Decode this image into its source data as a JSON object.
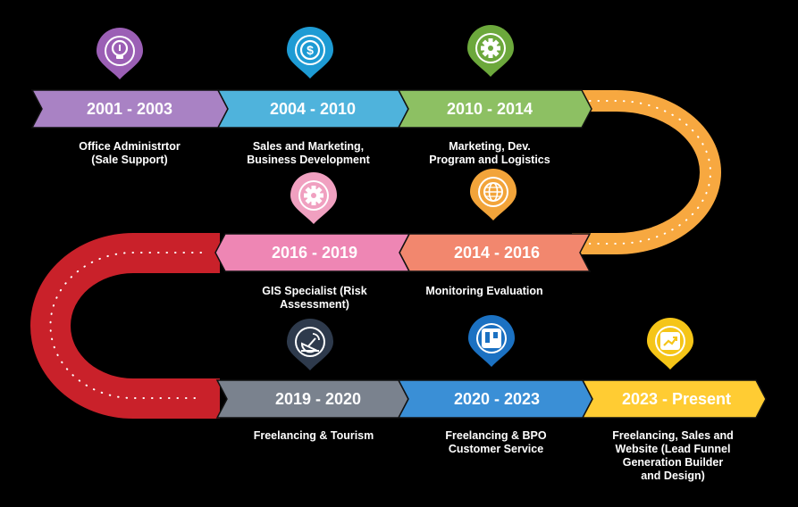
{
  "milestones": [
    {
      "years": "2001 - 2003",
      "role": "Office Administrtor\n(Sale Support)",
      "color": "#A982C4",
      "icon": "lightbulb-icon"
    },
    {
      "years": "2004 - 2010",
      "role": "Sales and Marketing,\nBusiness Development",
      "color": "#4FB3DC",
      "icon": "dollar-icon"
    },
    {
      "years": "2010 - 2014",
      "role": "Marketing, Dev.\nProgram and Logistics",
      "color": "#8DC063",
      "icon": "gear-icon"
    },
    {
      "years": "2014 - 2016",
      "role": "Monitoring Evaluation",
      "color": "#F2876E",
      "icon": "globe-icon"
    },
    {
      "years": "2016 - 2019",
      "role": "GIS Specialist (Risk\nAssessment)",
      "color": "#EE86B4",
      "icon": "cog-icon"
    },
    {
      "years": "2019 - 2020",
      "role": "Freelancing & Tourism",
      "color": "#7A828E",
      "icon": "satellite-dish-icon"
    },
    {
      "years": "2020 - 2023",
      "role": "Freelancing & BPO\nCustomer Service",
      "color": "#3A8FD6",
      "icon": "trello-board-icon"
    },
    {
      "years": "2023 - Present",
      "role": "Freelancing, Sales and\nWebsite (Lead Funnel\nGeneration Builder\nand Design)",
      "color": "#FFCC33",
      "icon": "growth-chart-icon"
    }
  ],
  "curves": {
    "right_color": "#F7A840",
    "left_color": "#C9212A"
  },
  "pin_colors": {
    "lightbulb-icon": "#9B5FB5",
    "dollar-icon": "#1E9BD4",
    "gear-icon": "#6CA83C",
    "globe-icon": "#F2A43A",
    "cog-icon": "#F0A0C0",
    "satellite-dish-icon": "#2E3A4C",
    "trello-board-icon": "#1B71C2",
    "growth-chart-icon": "#F5C518"
  }
}
